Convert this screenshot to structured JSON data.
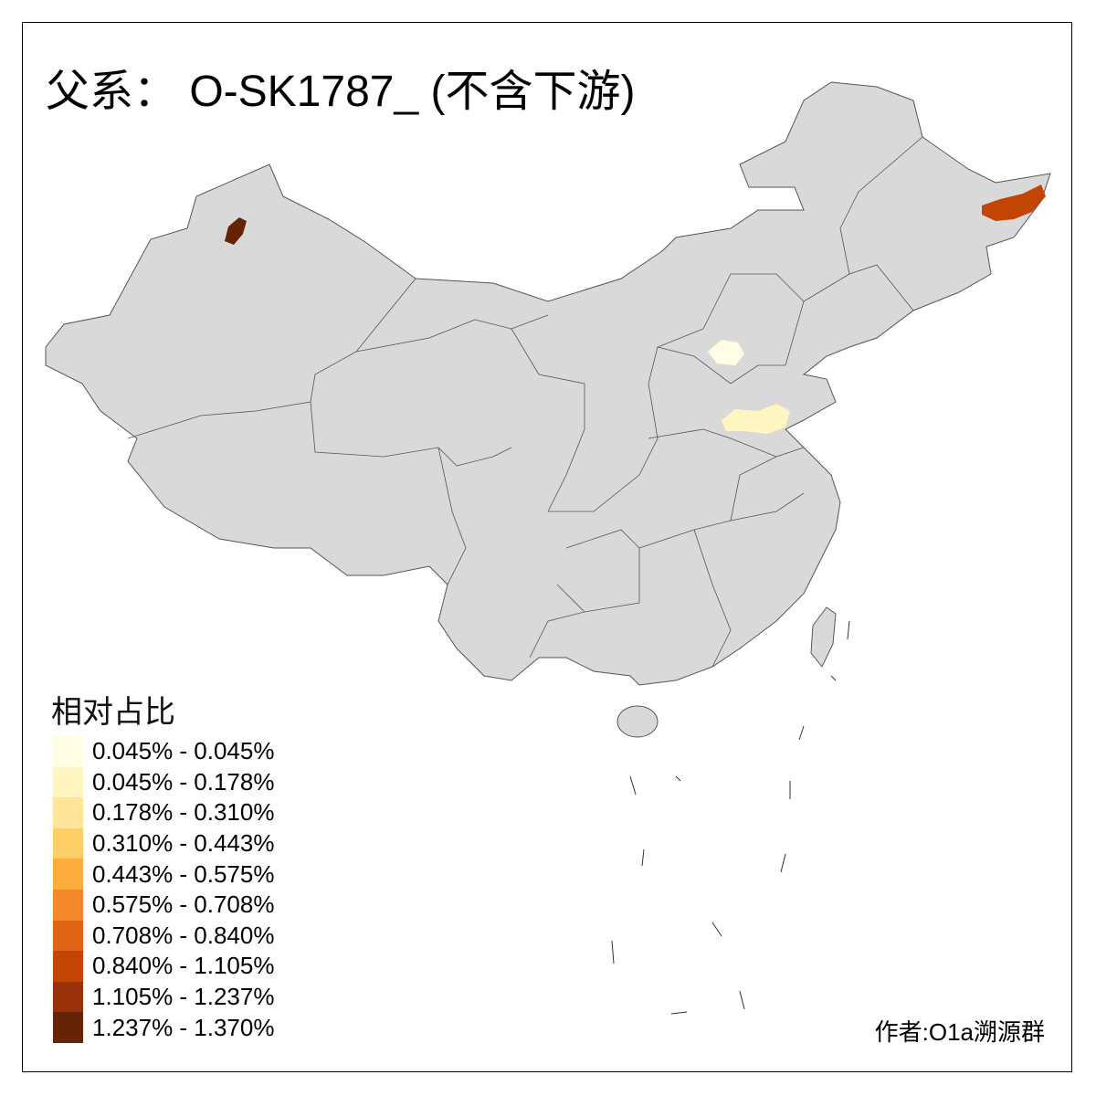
{
  "title": "父系： O-SK1787_ (不含下游)",
  "legend": {
    "title": "相对占比",
    "classes": [
      {
        "label": "0.045% - 0.045%",
        "color": "#FFFDE4"
      },
      {
        "label": "0.045% - 0.178%",
        "color": "#FFF5C0"
      },
      {
        "label": "0.178% - 0.310%",
        "color": "#FEE59A"
      },
      {
        "label": "0.310% - 0.443%",
        "color": "#FECF66"
      },
      {
        "label": "0.443% - 0.575%",
        "color": "#FDAD3B"
      },
      {
        "label": "0.575% - 0.708%",
        "color": "#F3892A"
      },
      {
        "label": "0.708% - 0.840%",
        "color": "#E06415"
      },
      {
        "label": "0.840% - 1.105%",
        "color": "#C24504"
      },
      {
        "label": "1.105% - 1.237%",
        "color": "#98300A"
      },
      {
        "label": "1.237% - 1.370%",
        "color": "#672306"
      }
    ]
  },
  "map": {
    "base_color": "#D9D9D9",
    "border_color": "#555555",
    "highlighted_regions": [
      {
        "class": 9
      },
      {
        "class": 7
      },
      {
        "class": 0
      },
      {
        "class": 1
      }
    ]
  },
  "author": "作者:O1a溯源群"
}
